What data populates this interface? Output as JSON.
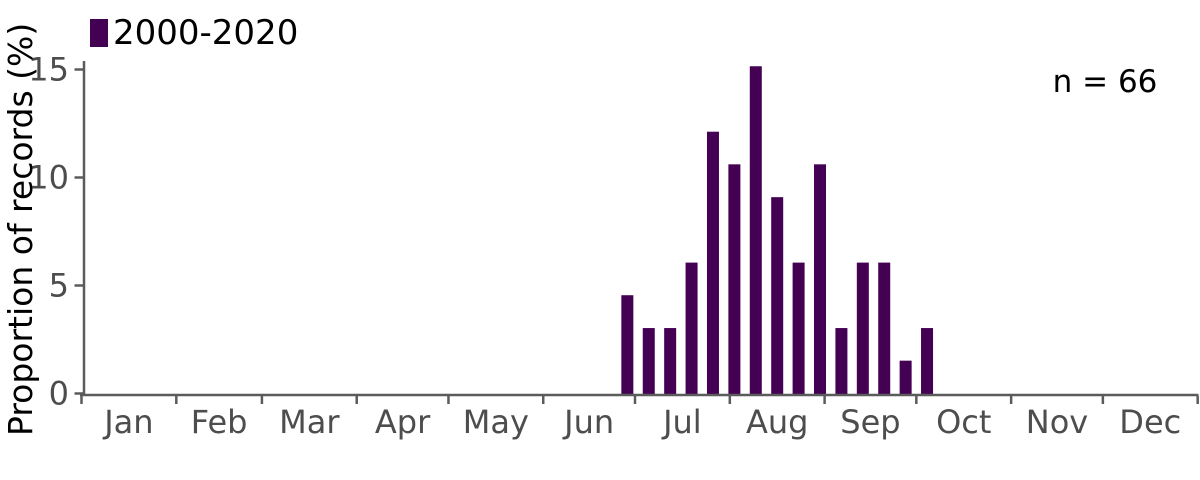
{
  "colors": {
    "bar": "#440154",
    "axis_line": "#5b5b5b",
    "tick_label": "#4d4d4d",
    "text": "#000000",
    "background": "#ffffff"
  },
  "legend": {
    "label": "2000-2020"
  },
  "annotation": {
    "text": "n = 66"
  },
  "chart_data": {
    "type": "bar",
    "title": "",
    "xlabel": "",
    "ylabel": "Proportion of records (%)",
    "legend_entries": [
      {
        "label": "2000-2020",
        "color": "#440154"
      }
    ],
    "annotation": "n = 66",
    "n_total": 66,
    "x_axis": {
      "kind": "day-of-year, ticks at month boundaries",
      "tick_labels": [
        "Jan",
        "Feb",
        "Mar",
        "Apr",
        "May",
        "Jun",
        "Jul",
        "Aug",
        "Sep",
        "Oct",
        "Nov",
        "Dec"
      ],
      "month_lengths_days": [
        31,
        28,
        31,
        30,
        31,
        30,
        31,
        31,
        30,
        31,
        30,
        31
      ]
    },
    "y_axis": {
      "ticks": [
        0,
        5,
        10,
        15
      ],
      "range": [
        0,
        15.5
      ],
      "grid": false
    },
    "series": [
      {
        "name": "2000-2020",
        "bin": "week_of_year",
        "weeks": [
          26,
          27,
          28,
          29,
          30,
          31,
          32,
          33,
          34,
          35,
          36,
          37,
          38,
          39,
          40
        ],
        "values": [
          4.55,
          3.03,
          3.03,
          6.06,
          12.12,
          10.61,
          15.15,
          9.09,
          6.06,
          10.61,
          3.03,
          6.06,
          6.06,
          1.52,
          3.03
        ]
      }
    ]
  }
}
